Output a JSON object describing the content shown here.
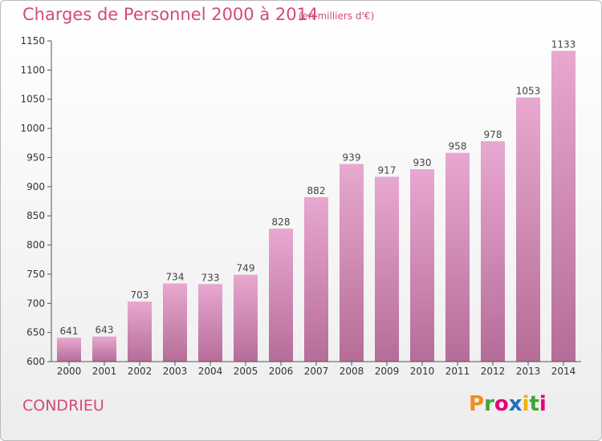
{
  "header": {
    "title": "Charges de Personnel 2000 à 2014",
    "subtitle": "(en milliers d'€)"
  },
  "footer": {
    "commune": "CONDRIEU",
    "logo": "Proxiti"
  },
  "colors": {
    "title": "#d24a7b",
    "bar_top": "#e8a8cf",
    "bar_bottom": "#b56d98",
    "logo": [
      "#f28c1b",
      "#3fa535",
      "#e2007a",
      "#1d71b8",
      "#f2b200",
      "#3fa535",
      "#e2007a"
    ]
  },
  "chart_data": {
    "type": "bar",
    "title": "Charges de Personnel 2000 à 2014",
    "subtitle": "(en milliers d'€)",
    "categories": [
      "2000",
      "2001",
      "2002",
      "2003",
      "2004",
      "2005",
      "2006",
      "2007",
      "2008",
      "2009",
      "2010",
      "2011",
      "2012",
      "2013",
      "2014"
    ],
    "values": [
      641,
      643,
      703,
      734,
      733,
      749,
      828,
      882,
      939,
      917,
      930,
      958,
      978,
      1053,
      1133
    ],
    "data_labels": [
      "641",
      "643",
      "703",
      "734",
      "733",
      "749",
      "828",
      "882",
      "939",
      "917",
      "930",
      "958",
      "978",
      "1053",
      "1133"
    ],
    "yticks": [
      600,
      650,
      700,
      750,
      800,
      850,
      900,
      950,
      1000,
      1050,
      1100,
      1150
    ],
    "ylim": [
      600,
      1150
    ],
    "grid": false,
    "legend": "none"
  }
}
